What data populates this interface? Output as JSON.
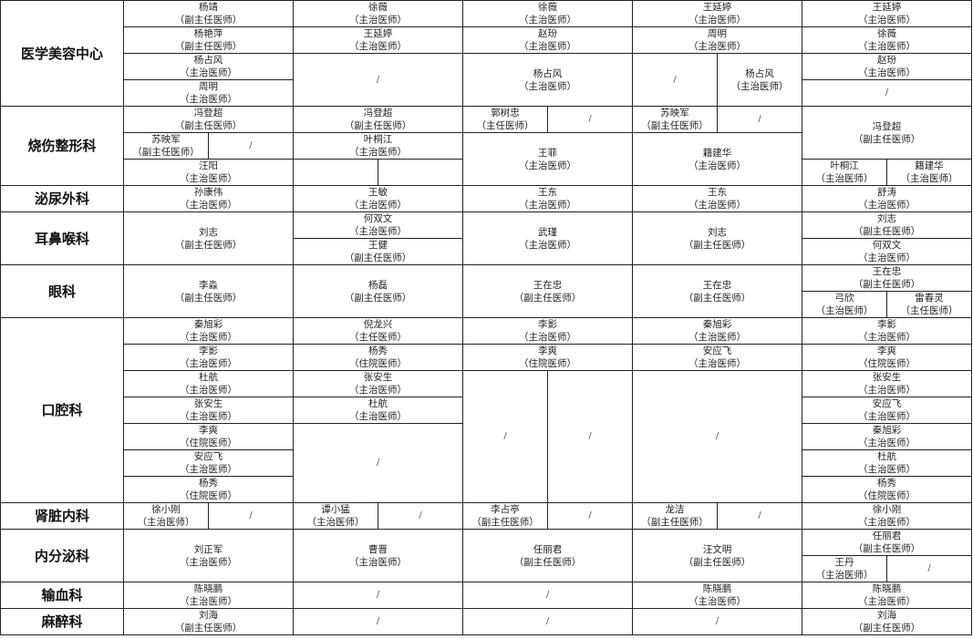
{
  "departments": [
    {
      "name": "医学美容中心",
      "cells": [
        {
          "doctor": "杨靖",
          "title": "（副主任医师）"
        },
        {
          "doctor": "杨艳萍",
          "title": "（副主任医师）"
        },
        {
          "doctor": "杨占风",
          "title": "（主治医师）"
        },
        {
          "doctor": "周明",
          "title": "（主治医师）"
        },
        {
          "doctor": "徐薇",
          "title": "（主治医师）"
        },
        {
          "doctor": "王延婷",
          "title": "（主治医师）"
        },
        {
          "doctor": "/"
        },
        {
          "doctor": "徐薇",
          "title": "（主治医师）"
        },
        {
          "doctor": "赵玢",
          "title": "（主治医师）"
        },
        {
          "doctor": "杨占风",
          "title": "（主治医师）"
        },
        {
          "doctor": "王延婷",
          "title": "（主治医师）"
        },
        {
          "doctor": "周明",
          "title": "（主治医师）"
        },
        {
          "doctor": "/"
        },
        {
          "doctor": "杨占风",
          "title": "（主治医师）"
        },
        {
          "doctor": "王延婷",
          "title": "（主治医师）"
        },
        {
          "doctor": "徐薇",
          "title": "（主治医师）"
        },
        {
          "doctor": "赵玢",
          "title": "（主治医师）"
        },
        {
          "doctor": "/"
        }
      ]
    },
    {
      "name": "烧伤整形科",
      "cells": [
        {
          "doctor": "冯登超",
          "title": "（副主任医师）"
        },
        {
          "doctor": "苏映军",
          "title": "（副主任医师）"
        },
        {
          "doctor": "/"
        },
        {
          "doctor": "汪阳",
          "title": "（主治医师）"
        },
        {
          "doctor": "冯登超",
          "title": "（副主任医师）"
        },
        {
          "doctor": "叶桐江",
          "title": "（主治医师）"
        },
        {
          "doctor": ""
        },
        {
          "doctor": ""
        },
        {
          "doctor": "郭树忠",
          "title": "（主任医师）"
        },
        {
          "doctor": "/"
        },
        {
          "doctor": "王菲",
          "title": "（主治医师）"
        },
        {
          "doctor": "苏映军",
          "title": "（副主任医师）"
        },
        {
          "doctor": "/"
        },
        {
          "doctor": "籍建华",
          "title": "（主治医师）"
        },
        {
          "doctor": "冯登超",
          "title": "（副主任医师）"
        },
        {
          "doctor": "叶桐江",
          "title": "（主治医师）"
        },
        {
          "doctor": "籍建华",
          "title": "（主治医师）"
        }
      ]
    },
    {
      "name": "泌尿外科",
      "cells": [
        {
          "doctor": "孙康伟",
          "title": "（主治医师）"
        },
        {
          "doctor": "王敏",
          "title": "（主治医师）"
        },
        {
          "doctor": "王东",
          "title": "（主治医师）"
        },
        {
          "doctor": "王东",
          "title": "（主治医师）"
        },
        {
          "doctor": "舒涛",
          "title": "（主治医师）"
        }
      ]
    },
    {
      "name": "耳鼻喉科",
      "cells": [
        {
          "doctor": "刘志",
          "title": "（副主任医师）"
        },
        {
          "doctor": "何双文",
          "title": "（主治医师）"
        },
        {
          "doctor": "王健",
          "title": "（副主任医师）"
        },
        {
          "doctor": "武瑾",
          "title": "（主治医师）"
        },
        {
          "doctor": "刘志",
          "title": "（副主任医师）"
        },
        {
          "doctor": "刘志",
          "title": "（副主任医师）"
        },
        {
          "doctor": "何双文",
          "title": "（主治医师）"
        }
      ]
    },
    {
      "name": "眼科",
      "cells": [
        {
          "doctor": "李淼",
          "title": "（副主任医师）"
        },
        {
          "doctor": "杨磊",
          "title": "（副主任医师）"
        },
        {
          "doctor": "王在忠",
          "title": "（副主任医师）"
        },
        {
          "doctor": "王在忠",
          "title": "（副主任医师）"
        },
        {
          "doctor": "王在忠",
          "title": "（副主任医师）"
        },
        {
          "doctor": "弓欣",
          "title": "（主治医师）"
        },
        {
          "doctor": "雷春灵",
          "title": "（主任医师）"
        }
      ]
    },
    {
      "name": "口腔科",
      "cells": [
        {
          "doctor": "秦旭彩",
          "title": "（主治医师）"
        },
        {
          "doctor": "李影",
          "title": "（主治医师）"
        },
        {
          "doctor": "杜航",
          "title": "（主治医师）"
        },
        {
          "doctor": "张安生",
          "title": "（主治医师）"
        },
        {
          "doctor": "李爽",
          "title": "（住院医师）"
        },
        {
          "doctor": "安应飞",
          "title": "（主治医师）"
        },
        {
          "doctor": "杨秀",
          "title": "（住院医师）"
        },
        {
          "doctor": "倪龙兴",
          "title": "（主任医师）"
        },
        {
          "doctor": "杨秀",
          "title": "（住院医师）"
        },
        {
          "doctor": "张安生",
          "title": "（主治医师）"
        },
        {
          "doctor": "杜航",
          "title": "（主治医师）"
        },
        {
          "doctor": "/"
        },
        {
          "doctor": "李影",
          "title": "（主治医师）"
        },
        {
          "doctor": "李爽",
          "title": "（住院医师）"
        },
        {
          "doctor": "/"
        },
        {
          "doctor": "/"
        },
        {
          "doctor": "秦旭彩",
          "title": "（主治医师）"
        },
        {
          "doctor": "安应飞",
          "title": "（主治医师）"
        },
        {
          "doctor": "/"
        },
        {
          "doctor": "李影",
          "title": "（主治医师）"
        },
        {
          "doctor": "李爽",
          "title": "（住院医师）"
        },
        {
          "doctor": "张安生",
          "title": "（主治医师）"
        },
        {
          "doctor": "安应飞",
          "title": "（主治医师）"
        },
        {
          "doctor": "秦旭彩",
          "title": "（主治医师）"
        },
        {
          "doctor": "杜航",
          "title": "（主治医师）"
        },
        {
          "doctor": "杨秀",
          "title": "（住院医师）"
        }
      ]
    },
    {
      "name": "肾脏内科",
      "cells": [
        {
          "doctor": "徐小刚",
          "title": "（主治医师）"
        },
        {
          "doctor": "/"
        },
        {
          "doctor": "谭小猛",
          "title": "（主治医师）"
        },
        {
          "doctor": "/"
        },
        {
          "doctor": "李占亭",
          "title": "（副主任医师）"
        },
        {
          "doctor": "/"
        },
        {
          "doctor": "龙洁",
          "title": "（副主任医师）"
        },
        {
          "doctor": "/"
        },
        {
          "doctor": "徐小刚",
          "title": "（主治医师）"
        }
      ]
    },
    {
      "name": "内分泌科",
      "cells": [
        {
          "doctor": "刘正军",
          "title": "（主治医师）"
        },
        {
          "doctor": "曹晋",
          "title": "（主治医师）"
        },
        {
          "doctor": "任丽君",
          "title": "（副主任医师）"
        },
        {
          "doctor": "汪文明",
          "title": "（副主任医师）"
        },
        {
          "doctor": "任丽君",
          "title": "（副主任医师）"
        },
        {
          "doctor": "王丹",
          "title": "（主治医师）"
        },
        {
          "doctor": "/"
        }
      ]
    },
    {
      "name": "输血科",
      "cells": [
        {
          "doctor": "陈晓鹏",
          "title": "（主治医师）"
        },
        {
          "doctor": "/"
        },
        {
          "doctor": "/"
        },
        {
          "doctor": "陈晓鹏",
          "title": "（主治医师）"
        },
        {
          "doctor": "陈晓鹏",
          "title": "（主治医师）"
        }
      ]
    },
    {
      "name": "麻醉科",
      "cells": [
        {
          "doctor": "刘海",
          "title": "（副主任医师）"
        },
        {
          "doctor": "/"
        },
        {
          "doctor": "/"
        },
        {
          "doctor": "/"
        },
        {
          "doctor": "刘海",
          "title": "（副主任医师）"
        }
      ]
    }
  ]
}
